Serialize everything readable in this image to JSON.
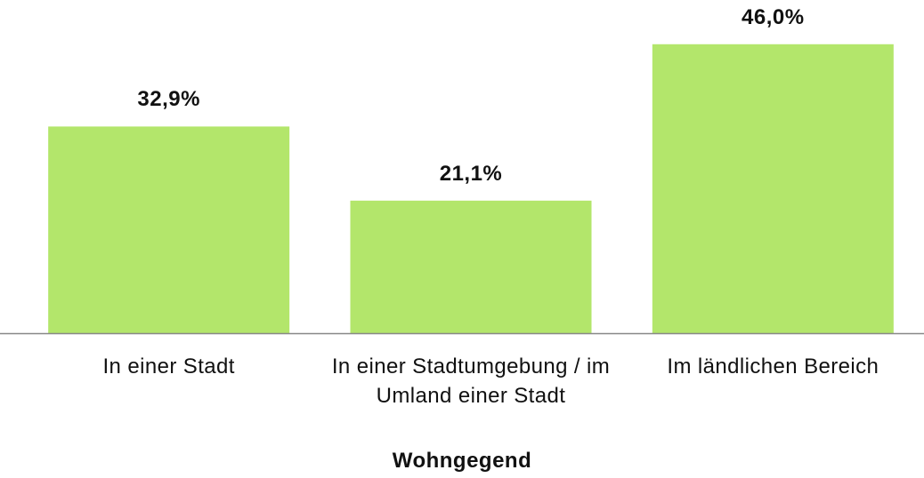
{
  "chart_data": {
    "type": "bar",
    "categories": [
      "In einer Stadt",
      "In einer Stadtumgebung / im Umland einer Stadt",
      "Im ländlichen Bereich"
    ],
    "values": [
      32.9,
      21.1,
      46.0
    ],
    "value_labels": [
      "32,9%",
      "21,1%",
      "46,0%"
    ],
    "color": "#b3e66b",
    "xlabel": "Wohngegend"
  }
}
